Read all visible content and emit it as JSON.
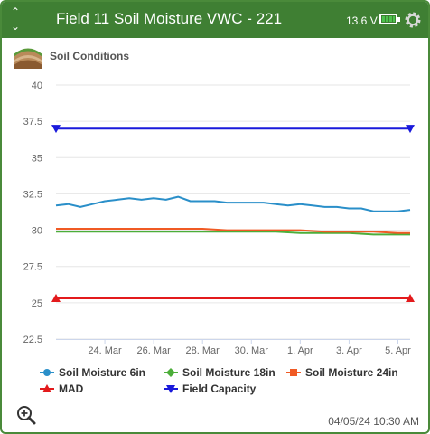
{
  "header": {
    "title": "Field 11 Soil Moisture VWC - 221",
    "voltage": "13.6 V",
    "colors": {
      "header_bg": "#3f7f33",
      "battery_fill": "#4cc24c"
    },
    "icons": [
      "chevron-up-icon",
      "chevron-down-icon",
      "battery-icon",
      "gear-icon"
    ]
  },
  "subtitle": "Soil Conditions",
  "timestamp": "04/05/24 10:30 AM",
  "chart_data": {
    "type": "line",
    "title": "",
    "xlabel": "",
    "ylabel": "",
    "ylim": [
      22.5,
      40
    ],
    "yticks": [
      "40",
      "37.5",
      "35",
      "32.5",
      "30",
      "27.5",
      "25",
      "22.5"
    ],
    "xlim": [
      "2024-03-22",
      "2024-04-05T12:00"
    ],
    "xticks": [
      {
        "date": "2024-03-24",
        "label": "24. Mar"
      },
      {
        "date": "2024-03-26",
        "label": "26. Mar"
      },
      {
        "date": "2024-03-28",
        "label": "28. Mar"
      },
      {
        "date": "2024-03-30",
        "label": "30. Mar"
      },
      {
        "date": "2024-04-01",
        "label": "1. Apr"
      },
      {
        "date": "2024-04-03",
        "label": "3. Apr"
      },
      {
        "date": "2024-04-05",
        "label": "5. Apr"
      }
    ],
    "grid": "horizontal",
    "legend_position": "bottom",
    "series": [
      {
        "name": "Soil Moisture 6in",
        "color": "#2a8fc9",
        "marker": "circle",
        "x": [
          "2024-03-22",
          "2024-03-22T12:00",
          "2024-03-23",
          "2024-03-23T12:00",
          "2024-03-24",
          "2024-03-24T12:00",
          "2024-03-25",
          "2024-03-25T12:00",
          "2024-03-26",
          "2024-03-26T12:00",
          "2024-03-27",
          "2024-03-27T12:00",
          "2024-03-28",
          "2024-03-28T12:00",
          "2024-03-29",
          "2024-03-29T12:00",
          "2024-03-30",
          "2024-03-30T12:00",
          "2024-03-31",
          "2024-03-31T12:00",
          "2024-04-01",
          "2024-04-01T12:00",
          "2024-04-02",
          "2024-04-02T12:00",
          "2024-04-03",
          "2024-04-03T12:00",
          "2024-04-04",
          "2024-04-04T12:00",
          "2024-04-05",
          "2024-04-05T12:00"
        ],
        "y": [
          31.7,
          31.8,
          31.6,
          31.8,
          32.0,
          32.1,
          32.2,
          32.1,
          32.2,
          32.1,
          32.3,
          32.0,
          32.0,
          32.0,
          31.9,
          31.9,
          31.9,
          31.9,
          31.8,
          31.7,
          31.8,
          31.7,
          31.6,
          31.6,
          31.5,
          31.5,
          31.3,
          31.3,
          31.3,
          31.4
        ]
      },
      {
        "name": "Soil Moisture 18in",
        "color": "#4cae3a",
        "marker": "diamond",
        "x": [
          "2024-03-22",
          "2024-03-23",
          "2024-03-24",
          "2024-03-25",
          "2024-03-26",
          "2024-03-27",
          "2024-03-28",
          "2024-03-29",
          "2024-03-30",
          "2024-03-31",
          "2024-04-01",
          "2024-04-02",
          "2024-04-03",
          "2024-04-04",
          "2024-04-05",
          "2024-04-05T12:00"
        ],
        "y": [
          29.9,
          29.9,
          29.9,
          29.9,
          29.9,
          29.9,
          29.9,
          29.9,
          29.9,
          29.9,
          29.8,
          29.8,
          29.8,
          29.7,
          29.7,
          29.7
        ]
      },
      {
        "name": "Soil Moisture 24in",
        "color": "#f05a24",
        "marker": "square",
        "x": [
          "2024-03-22",
          "2024-03-23",
          "2024-03-24",
          "2024-03-25",
          "2024-03-26",
          "2024-03-27",
          "2024-03-28",
          "2024-03-29",
          "2024-03-30",
          "2024-03-31",
          "2024-04-01",
          "2024-04-02",
          "2024-04-03",
          "2024-04-04",
          "2024-04-05",
          "2024-04-05T12:00"
        ],
        "y": [
          30.1,
          30.1,
          30.1,
          30.1,
          30.1,
          30.1,
          30.1,
          30.0,
          30.0,
          30.0,
          30.0,
          29.9,
          29.9,
          29.9,
          29.8,
          29.8
        ]
      },
      {
        "name": "MAD",
        "color": "#e31a1c",
        "marker": "triangle-up",
        "x": [
          "2024-03-22",
          "2024-04-05T12:00"
        ],
        "y": [
          25.3,
          25.3
        ]
      },
      {
        "name": "Field Capacity",
        "color": "#1a1adb",
        "marker": "triangle-down",
        "x": [
          "2024-03-22",
          "2024-04-05T12:00"
        ],
        "y": [
          37.0,
          37.0
        ]
      }
    ]
  }
}
